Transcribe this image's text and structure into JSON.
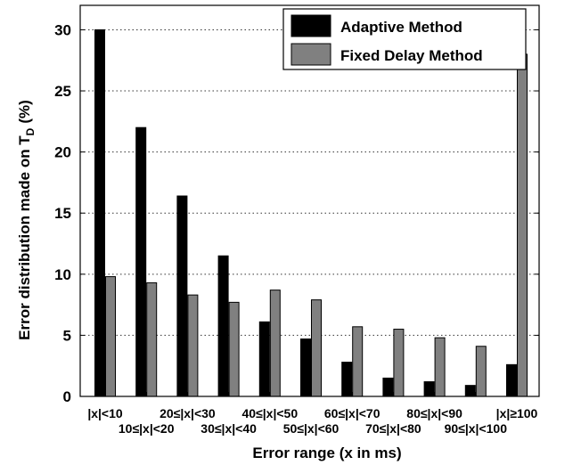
{
  "chart_data": {
    "type": "bar",
    "categories": [
      "|x|<10",
      "10≤|x|<20",
      "20≤|x|<30",
      "30≤|x|<40",
      "40≤|x|<50",
      "50≤|x|<60",
      "60≤|x|<70",
      "70≤|x|<80",
      "80≤|x|<90",
      "90≤|x|<100",
      "|x|≥100"
    ],
    "series": [
      {
        "name": "Adaptive Method",
        "color": "#000000",
        "values": [
          30.0,
          22.0,
          16.4,
          11.5,
          6.1,
          4.7,
          2.8,
          1.5,
          1.2,
          0.9,
          2.6
        ]
      },
      {
        "name": "Fixed Delay Method",
        "color": "#808080",
        "values": [
          9.8,
          9.3,
          8.3,
          7.7,
          8.7,
          7.9,
          5.7,
          5.5,
          4.8,
          4.1,
          28.0
        ]
      }
    ],
    "title": "",
    "xlabel": "Error range (x in ms)",
    "ylabel_main": "Error distribution made on T",
    "ylabel_sub": "D",
    "ylabel_unit": "(%)",
    "ylim": [
      0,
      32
    ],
    "yticks": [
      0,
      5,
      10,
      15,
      20,
      25,
      30
    ],
    "grid": "horizontal-dotted",
    "legend_position": "top-right"
  }
}
